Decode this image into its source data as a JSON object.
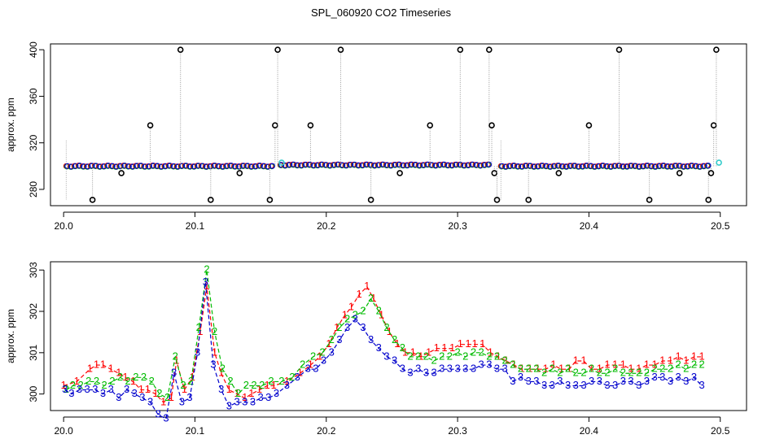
{
  "title": "SPL_060920  CO2 Timeseries",
  "chart_data": [
    {
      "type": "scatter",
      "ylabel": "approx. ppm",
      "xlim": [
        19.99,
        20.52
      ],
      "ylim": [
        266,
        405
      ],
      "xticks": [
        20.0,
        20.1,
        20.2,
        20.3,
        20.4,
        20.5
      ],
      "xtick_labels": [
        "20.0",
        "20.1",
        "20.2",
        "20.3",
        "20.4",
        "20.5"
      ],
      "yticks": [
        280,
        320,
        360,
        400
      ],
      "ytick_labels": [
        "280",
        "320",
        "360",
        "400"
      ],
      "baseline_segments": [
        {
          "x_start": 20.002,
          "x_end": 20.158,
          "y": 300
        },
        {
          "x_start": 20.165,
          "x_end": 20.323,
          "y": 301
        },
        {
          "x_start": 20.333,
          "x_end": 20.49,
          "y": 300
        }
      ],
      "spikes": [
        {
          "x": 20.022,
          "y": 271
        },
        {
          "x": 20.044,
          "y": 294
        },
        {
          "x": 20.066,
          "y": 335
        },
        {
          "x": 20.089,
          "y": 400
        },
        {
          "x": 20.112,
          "y": 271
        },
        {
          "x": 20.134,
          "y": 294
        },
        {
          "x": 20.157,
          "y": 271
        },
        {
          "x": 20.161,
          "y": 335
        },
        {
          "x": 20.163,
          "y": 400
        },
        {
          "x": 20.188,
          "y": 335
        },
        {
          "x": 20.211,
          "y": 400
        },
        {
          "x": 20.234,
          "y": 271
        },
        {
          "x": 20.256,
          "y": 294
        },
        {
          "x": 20.279,
          "y": 335
        },
        {
          "x": 20.302,
          "y": 400
        },
        {
          "x": 20.324,
          "y": 400
        },
        {
          "x": 20.326,
          "y": 335
        },
        {
          "x": 20.328,
          "y": 294
        },
        {
          "x": 20.33,
          "y": 271
        },
        {
          "x": 20.354,
          "y": 271
        },
        {
          "x": 20.377,
          "y": 294
        },
        {
          "x": 20.4,
          "y": 335
        },
        {
          "x": 20.423,
          "y": 400
        },
        {
          "x": 20.446,
          "y": 271
        },
        {
          "x": 20.469,
          "y": 294
        },
        {
          "x": 20.491,
          "y": 271
        },
        {
          "x": 20.493,
          "y": 294
        },
        {
          "x": 20.495,
          "y": 335
        },
        {
          "x": 20.497,
          "y": 400
        }
      ],
      "cyan_points": [
        {
          "x": 20.166,
          "y": 303
        },
        {
          "x": 20.499,
          "y": 303
        }
      ]
    },
    {
      "type": "line",
      "ylabel": "approx. ppm",
      "xlim": [
        19.99,
        20.52
      ],
      "ylim": [
        299.6,
        303.2
      ],
      "xticks": [
        20.0,
        20.1,
        20.2,
        20.3,
        20.4,
        20.5
      ],
      "xtick_labels": [
        "20.0",
        "20.1",
        "20.2",
        "20.3",
        "20.4",
        "20.5"
      ],
      "yticks": [
        300,
        301,
        302,
        303
      ],
      "ytick_labels": [
        "300",
        "301",
        "302",
        "303"
      ],
      "series": [
        {
          "name": "1",
          "symbol": "1",
          "color": "#ff0000",
          "x": [
            20.0,
            20.01,
            20.02,
            20.025,
            20.03,
            20.036,
            20.042,
            20.047,
            20.053,
            20.059,
            20.064,
            20.07,
            20.076,
            20.082,
            20.086,
            20.092,
            20.098,
            20.104,
            20.109,
            20.115,
            20.12,
            20.126,
            20.132,
            20.138,
            20.143,
            20.149,
            20.155,
            20.16,
            20.17,
            20.18,
            20.188,
            20.195,
            20.202,
            20.208,
            20.214,
            20.219,
            20.225,
            20.231,
            20.236,
            20.242,
            20.248,
            20.254,
            20.26,
            20.266,
            20.272,
            20.278,
            20.284,
            20.29,
            20.296,
            20.302,
            20.308,
            20.313,
            20.319,
            20.325,
            20.331,
            20.337,
            20.343,
            20.349,
            20.355,
            20.361,
            20.367,
            20.373,
            20.379,
            20.385,
            20.39,
            20.396,
            20.402,
            20.408,
            20.414,
            20.42,
            20.426,
            20.432,
            20.438,
            20.444,
            20.45,
            20.456,
            20.462,
            20.468,
            20.474,
            20.48,
            20.486
          ],
          "values": [
            300.2,
            300.3,
            300.6,
            300.7,
            300.7,
            300.6,
            300.5,
            300.4,
            300.3,
            300.1,
            300.1,
            300.0,
            299.8,
            299.9,
            300.8,
            300.1,
            300.4,
            301.5,
            302.6,
            301.0,
            300.5,
            300.1,
            300.0,
            299.9,
            300.0,
            300.1,
            300.2,
            300.2,
            300.3,
            300.5,
            300.7,
            300.9,
            301.2,
            301.6,
            301.9,
            302.1,
            302.4,
            302.6,
            302.3,
            301.9,
            301.5,
            301.2,
            301.0,
            301.0,
            300.9,
            301.0,
            301.1,
            301.1,
            301.1,
            301.2,
            301.2,
            301.2,
            301.2,
            301.0,
            300.9,
            300.8,
            300.7,
            300.6,
            300.6,
            300.6,
            300.6,
            300.7,
            300.6,
            300.6,
            300.8,
            300.8,
            300.6,
            300.6,
            300.7,
            300.7,
            300.7,
            300.6,
            300.6,
            300.7,
            300.7,
            300.8,
            300.8,
            300.9,
            300.8,
            300.9,
            300.9
          ]
        },
        {
          "name": "2",
          "symbol": "2",
          "color": "#00bb00",
          "x": [
            20.002,
            20.007,
            20.013,
            20.019,
            20.025,
            20.031,
            20.037,
            20.043,
            20.049,
            20.055,
            20.061,
            20.067,
            20.073,
            20.079,
            20.085,
            20.091,
            20.097,
            20.103,
            20.109,
            20.115,
            20.121,
            20.127,
            20.133,
            20.139,
            20.145,
            20.151,
            20.158,
            20.166,
            20.174,
            20.182,
            20.19,
            20.197,
            20.204,
            20.21,
            20.216,
            20.222,
            20.228,
            20.234,
            20.24,
            20.246,
            20.252,
            20.258,
            20.264,
            20.27,
            20.276,
            20.282,
            20.288,
            20.294,
            20.3,
            20.306,
            20.312,
            20.318,
            20.324,
            20.33,
            20.336,
            20.342,
            20.348,
            20.354,
            20.36,
            20.366,
            20.372,
            20.378,
            20.384,
            20.39,
            20.396,
            20.402,
            20.408,
            20.414,
            20.42,
            20.426,
            20.432,
            20.438,
            20.444,
            20.45,
            20.456,
            20.462,
            20.468,
            20.474,
            20.48,
            20.486
          ],
          "values": [
            300.1,
            300.2,
            300.2,
            300.3,
            300.3,
            300.2,
            300.3,
            300.4,
            300.3,
            300.4,
            300.4,
            300.3,
            300.0,
            299.9,
            300.9,
            300.2,
            300.3,
            301.6,
            303.0,
            301.5,
            300.6,
            300.3,
            300.0,
            300.2,
            300.2,
            300.2,
            300.3,
            300.3,
            300.4,
            300.7,
            300.9,
            301.0,
            301.3,
            301.6,
            301.8,
            301.9,
            302.0,
            302.3,
            302.0,
            301.6,
            301.3,
            301.1,
            300.9,
            300.9,
            300.9,
            300.8,
            300.9,
            300.9,
            301.0,
            300.9,
            301.0,
            301.0,
            300.9,
            300.9,
            300.8,
            300.7,
            300.6,
            300.6,
            300.6,
            300.5,
            300.6,
            300.5,
            300.6,
            300.5,
            300.5,
            300.6,
            300.5,
            300.5,
            300.6,
            300.5,
            300.5,
            300.5,
            300.5,
            300.6,
            300.6,
            300.6,
            300.7,
            300.6,
            300.7,
            300.7
          ]
        },
        {
          "name": "3",
          "symbol": "3",
          "color": "#0000cc",
          "x": [
            20.001,
            20.006,
            20.012,
            20.018,
            20.024,
            20.03,
            20.036,
            20.042,
            20.048,
            20.054,
            20.06,
            20.066,
            20.072,
            20.078,
            20.084,
            20.09,
            20.096,
            20.102,
            20.108,
            20.114,
            20.12,
            20.126,
            20.132,
            20.138,
            20.144,
            20.15,
            20.156,
            20.162,
            20.17,
            20.178,
            20.186,
            20.192,
            20.198,
            20.204,
            20.21,
            20.216,
            20.222,
            20.228,
            20.234,
            20.24,
            20.246,
            20.252,
            20.258,
            20.264,
            20.27,
            20.276,
            20.282,
            20.288,
            20.294,
            20.3,
            20.306,
            20.312,
            20.318,
            20.324,
            20.33,
            20.336,
            20.342,
            20.348,
            20.354,
            20.36,
            20.366,
            20.372,
            20.378,
            20.384,
            20.39,
            20.396,
            20.402,
            20.408,
            20.414,
            20.42,
            20.426,
            20.432,
            20.438,
            20.444,
            20.45,
            20.456,
            20.462,
            20.468,
            20.474,
            20.48,
            20.486
          ],
          "values": [
            300.1,
            300.0,
            300.1,
            300.1,
            300.1,
            300.0,
            300.1,
            299.9,
            300.1,
            300.0,
            299.9,
            299.8,
            299.5,
            299.4,
            300.5,
            299.8,
            299.9,
            301.0,
            302.7,
            300.7,
            300.1,
            299.7,
            299.8,
            299.8,
            299.8,
            299.9,
            299.9,
            300.0,
            300.2,
            300.4,
            300.6,
            300.6,
            300.8,
            301.0,
            301.3,
            301.6,
            301.8,
            301.6,
            301.3,
            301.1,
            300.9,
            300.8,
            300.6,
            300.5,
            300.6,
            300.5,
            300.5,
            300.6,
            300.6,
            300.6,
            300.6,
            300.6,
            300.7,
            300.7,
            300.6,
            300.6,
            300.3,
            300.4,
            300.3,
            300.3,
            300.2,
            300.2,
            300.3,
            300.2,
            300.2,
            300.2,
            300.3,
            300.3,
            300.2,
            300.2,
            300.3,
            300.3,
            300.2,
            300.3,
            300.4,
            300.4,
            300.3,
            300.4,
            300.3,
            300.4,
            300.2
          ]
        }
      ]
    }
  ]
}
